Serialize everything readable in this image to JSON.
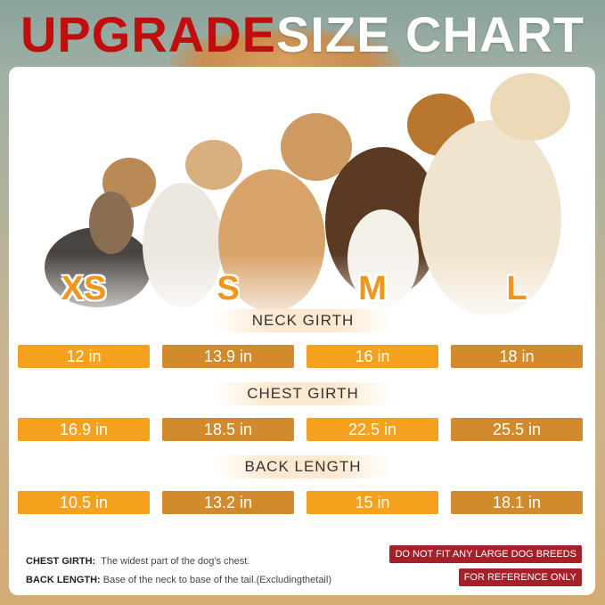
{
  "title": {
    "highlight": "UPGRADE",
    "rest": "SIZE CHART"
  },
  "colors": {
    "title_red": "#c00d0d",
    "orange": "#f5a11e",
    "dark_orange": "#d18a2c",
    "badge_red": "#a6202a"
  },
  "sizes": [
    "XS",
    "S",
    "M",
    "L"
  ],
  "sections": [
    {
      "label": "NECK GIRTH",
      "values": [
        "12 in",
        "13.9 in",
        "16 in",
        "18 in"
      ]
    },
    {
      "label": "CHEST GIRTH",
      "values": [
        "16.9 in",
        "18.5 in",
        "22.5 in",
        "25.5 in"
      ]
    },
    {
      "label": "BACK LENGTH",
      "values": [
        "10.5 in",
        "13.2 in",
        "15 in",
        "18.1 in"
      ]
    }
  ],
  "notes": [
    {
      "term": "CHEST GIRTH:",
      "text": "The widest part of the dog's chest."
    },
    {
      "term": "BACK LENGTH:",
      "text": "Base of the neck to base of the tail.(Excludingthetail)"
    }
  ],
  "badges": [
    "DO NOT FIT ANY LARGE DOG BREEDS",
    "FOR REFERENCE ONLY"
  ]
}
